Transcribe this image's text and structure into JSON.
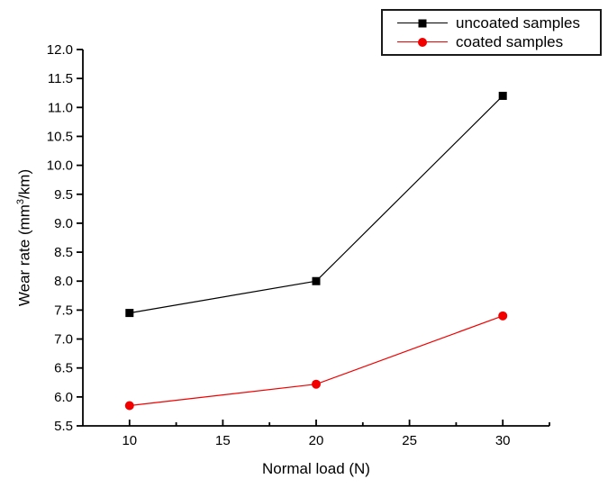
{
  "chart_data": {
    "type": "line",
    "title": "",
    "xlabel": "Normal load (N)",
    "ylabel": "Wear rate (mm³/km)",
    "ylabel_parts": {
      "base": "Wear rate (mm",
      "sup": "3",
      "end": "/km)"
    },
    "x": [
      10,
      20,
      30
    ],
    "series": [
      {
        "name": "uncoated samples",
        "color": "#000000",
        "marker": "square",
        "values": [
          7.45,
          8.0,
          11.2
        ]
      },
      {
        "name": "coated samples",
        "color": "#f20000",
        "marker": "circle",
        "values": [
          5.85,
          6.22,
          7.4
        ]
      }
    ],
    "xlim": [
      7.5,
      32.5
    ],
    "ylim": [
      5.5,
      12.0
    ],
    "x_major_ticks": [
      10,
      15,
      20,
      25,
      30
    ],
    "x_minor_ticks": [
      12.5,
      17.5,
      22.5,
      27.5,
      32.5
    ],
    "y_ticks": [
      5.5,
      6.0,
      6.5,
      7.0,
      7.5,
      8.0,
      8.5,
      9.0,
      9.5,
      10.0,
      10.5,
      11.0,
      11.5,
      12.0
    ],
    "grid": false,
    "legend_position": "top-right",
    "axis_color": "#000000",
    "background_color": "#ffffff"
  }
}
